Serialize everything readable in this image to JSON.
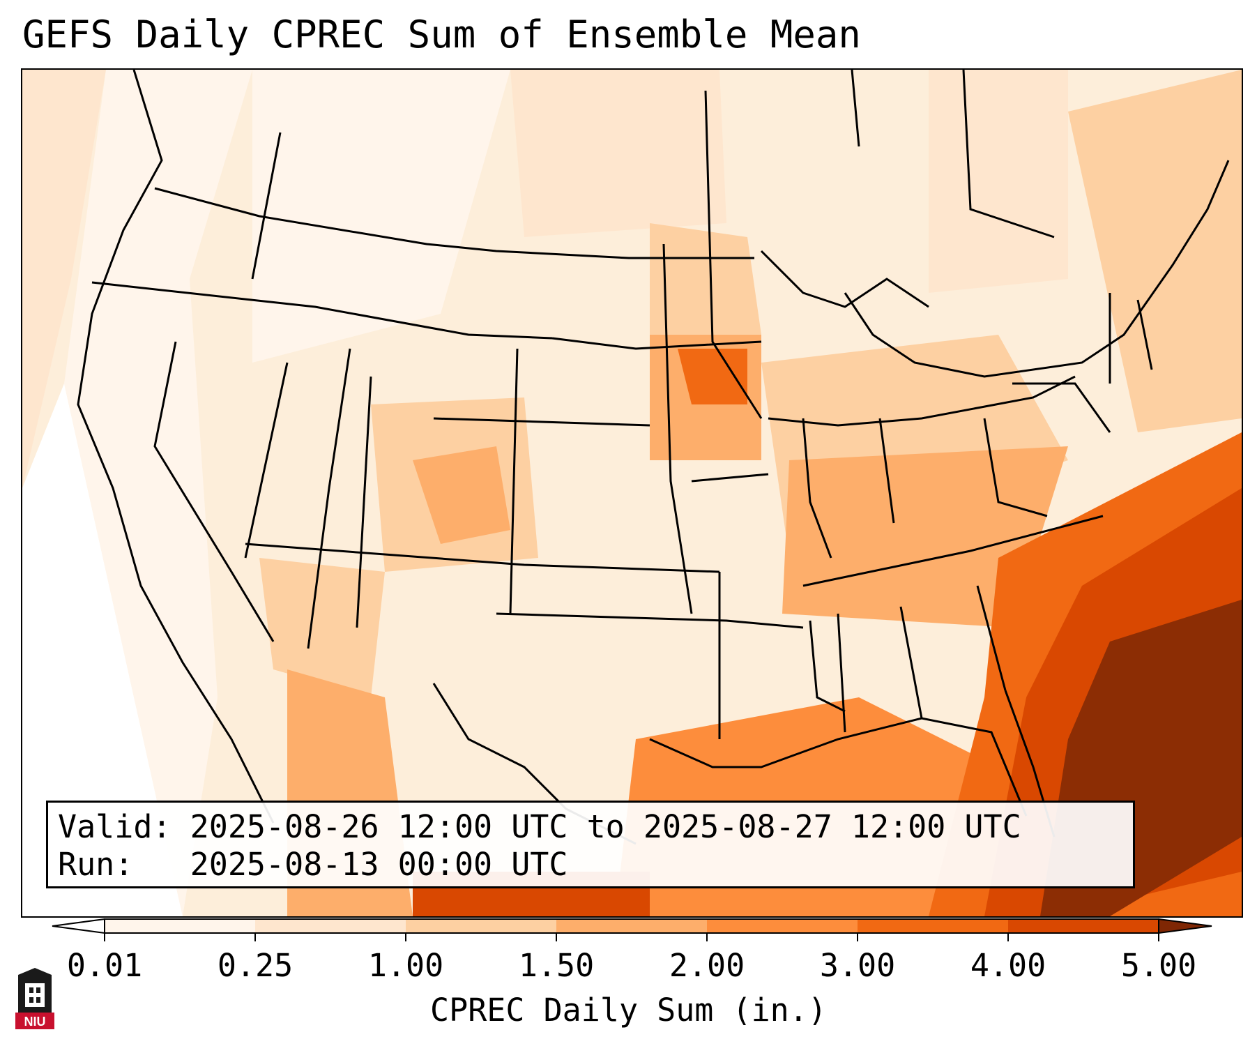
{
  "title": "GEFS Daily CPREC Sum of Ensemble Mean",
  "info": {
    "valid": "Valid: 2025-08-26 12:00 UTC to 2025-08-27 12:00 UTC",
    "run": "Run:   2025-08-13 00:00 UTC"
  },
  "colorbar": {
    "label": "CPREC Daily Sum (in.)",
    "ticks": [
      "0.01",
      "0.25",
      "1.00",
      "1.50",
      "2.00",
      "3.00",
      "4.00",
      "5.00"
    ],
    "colors": [
      "#fff5eb",
      "#fee6ce",
      "#fdd0a2",
      "#fdae6b",
      "#fd8d3c",
      "#f16913",
      "#d94801",
      "#8c2d04"
    ],
    "under_color": "#ffffff",
    "over_color": "#7f2704"
  },
  "logo": {
    "text": "NIU",
    "color": "#c8102e"
  }
}
